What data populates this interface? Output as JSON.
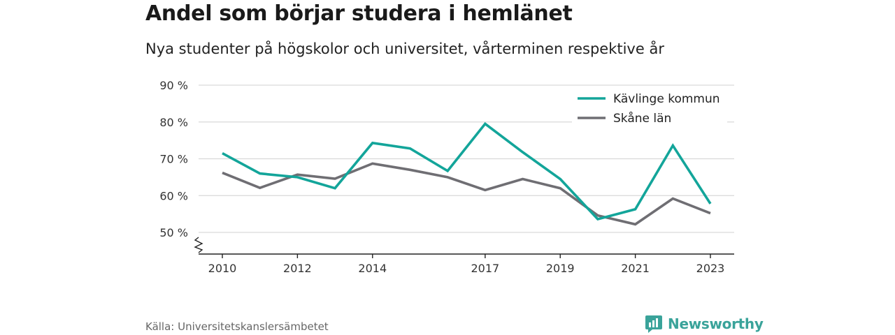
{
  "title": "Andel som börjar studera i hemlänet",
  "subtitle": "Nya studenter på högskolor och universitet, vårterminen respektive år",
  "source": "Källa: Universitetskanslersämbetet",
  "brand": {
    "name": "Newsworthy",
    "icon": "newsworthy-logo-icon",
    "color": "#3aa39a"
  },
  "chart_data": {
    "type": "line",
    "title": "Andel som börjar studera i hemlänet",
    "subtitle": "Nya studenter på högskolor och universitet, vårterminen respektive år",
    "x": [
      2010,
      2011,
      2012,
      2013,
      2014,
      2015,
      2016,
      2017,
      2018,
      2019,
      2020,
      2021,
      2022,
      2023
    ],
    "x_ticks": [
      2010,
      2012,
      2014,
      2017,
      2019,
      2021,
      2023
    ],
    "y_ticks": [
      50,
      60,
      70,
      80,
      90
    ],
    "y_tick_labels": [
      "50 %",
      "60 %",
      "70 %",
      "80 %",
      "90 %"
    ],
    "ylim": [
      45,
      90
    ],
    "y_axis_break": true,
    "grid": "horizontal",
    "legend_position": "top-right",
    "series": [
      {
        "name": "Kävlinge kommun",
        "color": "#13a59a",
        "values": [
          71.5,
          66.0,
          65.0,
          62.0,
          74.3,
          72.8,
          66.7,
          79.5,
          71.8,
          64.5,
          53.6,
          56.3,
          73.6,
          57.8
        ]
      },
      {
        "name": "Skåne län",
        "color": "#6f6e73",
        "values": [
          66.2,
          62.1,
          65.7,
          64.6,
          68.7,
          67.0,
          65.0,
          61.5,
          64.5,
          62.0,
          54.6,
          52.2,
          59.2,
          55.2
        ]
      }
    ]
  }
}
